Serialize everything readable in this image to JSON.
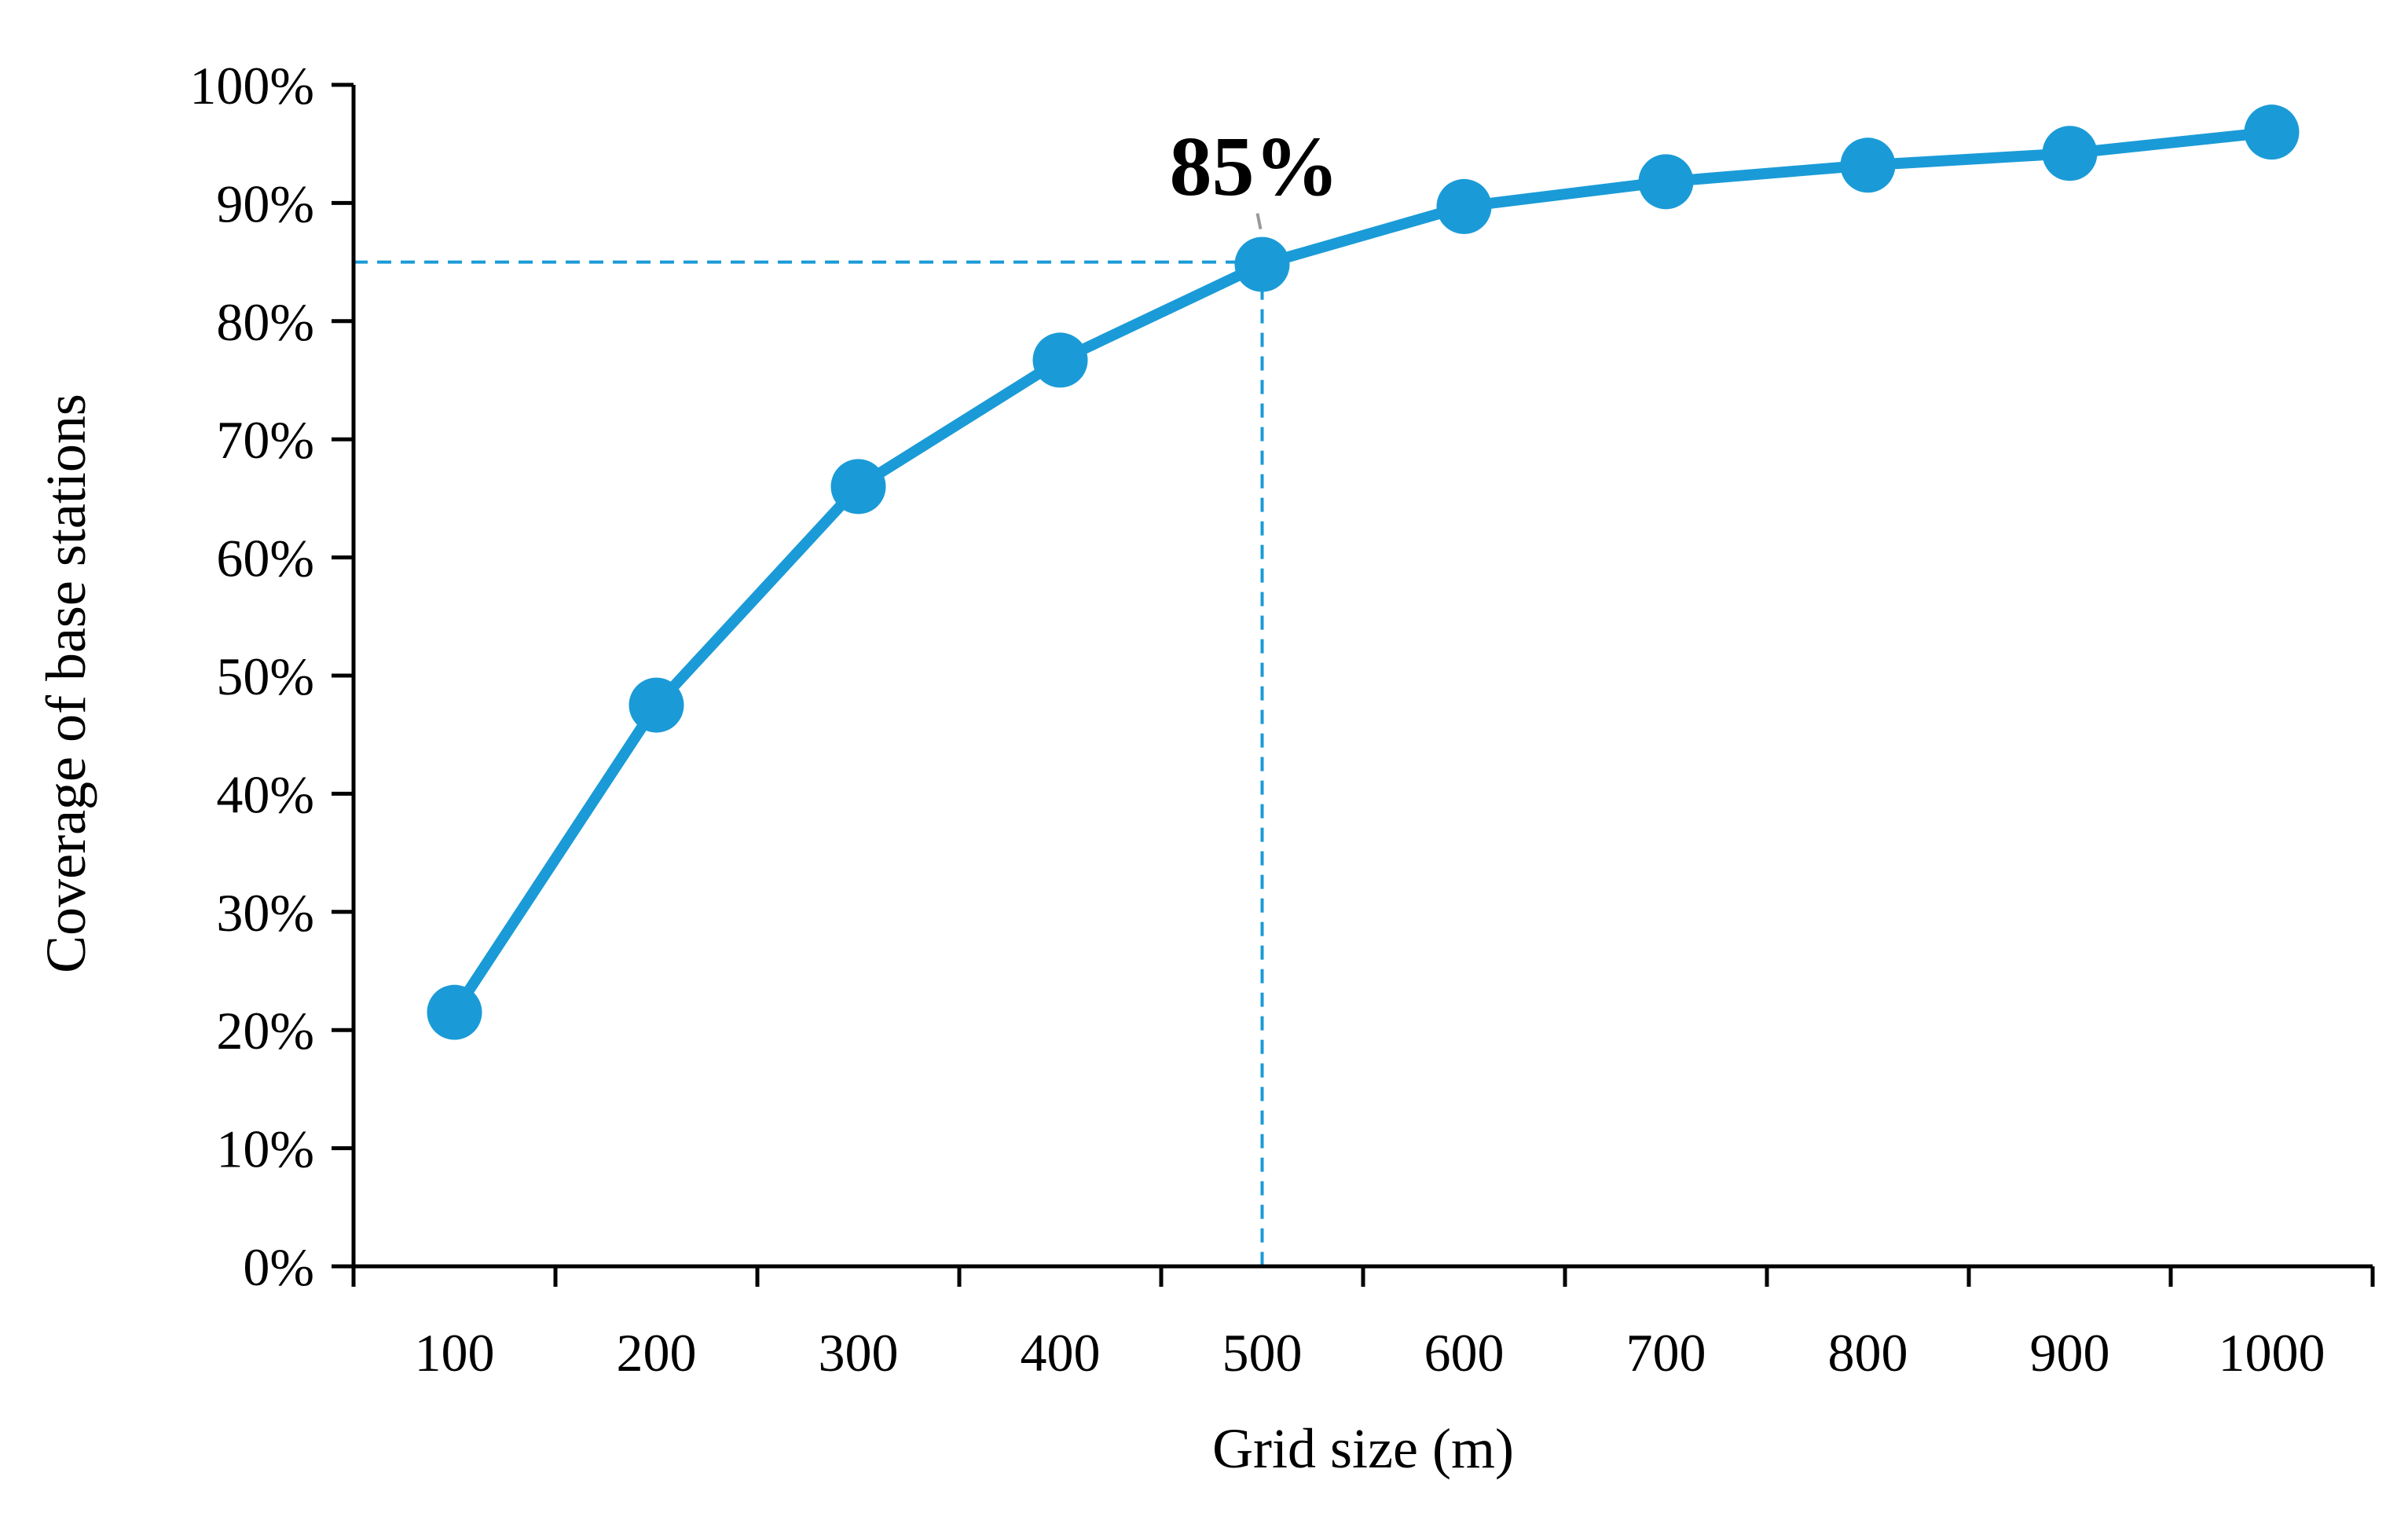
{
  "chart_data": {
    "type": "line",
    "x": [
      100,
      200,
      300,
      400,
      500,
      600,
      700,
      800,
      900,
      1000
    ],
    "categories": [
      "100",
      "200",
      "300",
      "400",
      "500",
      "600",
      "700",
      "800",
      "900",
      "1000"
    ],
    "series": [
      {
        "values": [
          21.5,
          47.5,
          66,
          76.7,
          84.8,
          89.7,
          91.8,
          93.2,
          94.2,
          96
        ]
      }
    ],
    "xlabel": "Grid size (m)",
    "ylabel": "Coverage of base stations",
    "ylim": [
      0,
      100
    ],
    "yticks": [
      0,
      10,
      20,
      30,
      40,
      50,
      60,
      70,
      80,
      90,
      100
    ],
    "ytick_labels": [
      "0%",
      "10%",
      "20%",
      "30%",
      "40%",
      "50%",
      "60%",
      "70%",
      "80%",
      "90%",
      "100%"
    ],
    "grid": false,
    "annotation": {
      "text": "85%",
      "x": 500,
      "y": 85
    },
    "reference_lines": {
      "y_value": 85,
      "x_value": 500,
      "style": "dashed"
    },
    "colors": {
      "line": "#1a9bd7",
      "axis": "#000000"
    }
  }
}
